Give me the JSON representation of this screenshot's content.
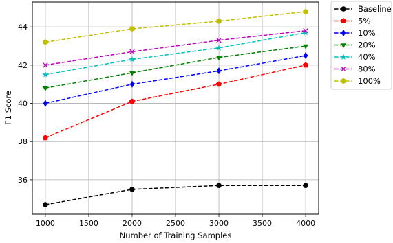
{
  "chart_data": {
    "type": "line",
    "xlabel": "Number of Training Samples",
    "ylabel": "F1 Score",
    "xlim": [
      850,
      4150
    ],
    "ylim": [
      34.2,
      45.3
    ],
    "xticks": [
      1000,
      1500,
      2000,
      2500,
      3000,
      3500,
      4000
    ],
    "yticks": [
      36,
      38,
      40,
      42,
      44
    ],
    "grid": true,
    "legend_position": "outside right, top",
    "x": [
      1000,
      2000,
      3000,
      4000
    ],
    "series": [
      {
        "name": "Baseline",
        "color": "#000000",
        "marker": "circle",
        "values": [
          34.7,
          35.5,
          35.7,
          35.7
        ]
      },
      {
        "name": "5%",
        "color": "#ff0000",
        "marker": "pentagon",
        "values": [
          38.2,
          40.1,
          41.0,
          42.0
        ]
      },
      {
        "name": "10%",
        "color": "#0000ff",
        "marker": "thin-diamond",
        "values": [
          40.0,
          41.0,
          41.7,
          42.5
        ]
      },
      {
        "name": "20%",
        "color": "#008000",
        "marker": "triangle-down",
        "values": [
          40.8,
          41.6,
          42.4,
          43.0
        ]
      },
      {
        "name": "40%",
        "color": "#00bfbf",
        "marker": "star",
        "values": [
          41.5,
          42.3,
          42.9,
          43.7
        ]
      },
      {
        "name": "80%",
        "color": "#bf00bf",
        "marker": "x",
        "values": [
          42.0,
          42.7,
          43.3,
          43.8
        ]
      },
      {
        "name": "100%",
        "color": "#bfbf00",
        "marker": "hexagon",
        "values": [
          43.2,
          43.9,
          44.3,
          44.8
        ]
      }
    ]
  }
}
